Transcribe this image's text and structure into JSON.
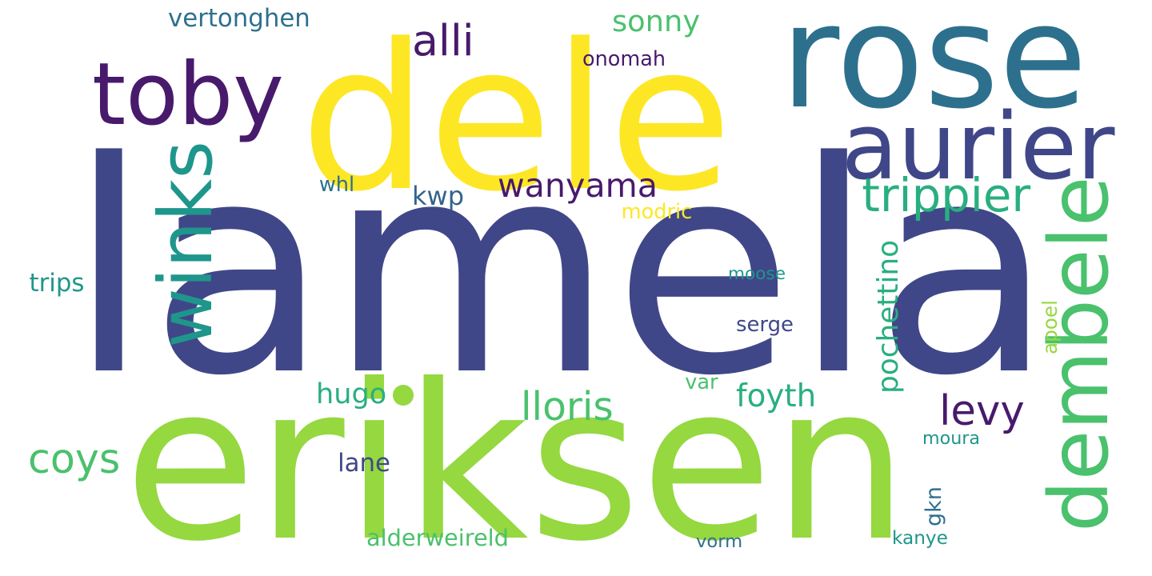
{
  "palette": {
    "background": "#ffffff",
    "indigo": "#404788",
    "yellow": "#fde725",
    "lime": "#95d840",
    "teal": "#2d708e",
    "purple": "#481a6c",
    "sea": "#29af7f",
    "green": "#4ac16d",
    "cyan": "#1f968b",
    "olive": "#b8de29",
    "ocean": "#33638d"
  },
  "words": [
    {
      "text": "lamela",
      "color": "#404788",
      "orientation": "horizontal"
    },
    {
      "text": "dele",
      "color": "#fde725",
      "orientation": "horizontal"
    },
    {
      "text": "eriksen",
      "color": "#95d840",
      "orientation": "horizontal"
    },
    {
      "text": "rose",
      "color": "#2d708e",
      "orientation": "horizontal"
    },
    {
      "text": "toby",
      "color": "#481a6c",
      "orientation": "horizontal"
    },
    {
      "text": "aurier",
      "color": "#404788",
      "orientation": "horizontal"
    },
    {
      "text": "winks",
      "color": "#1f968b",
      "orientation": "vertical"
    },
    {
      "text": "dembele",
      "color": "#4ac16d",
      "orientation": "vertical"
    },
    {
      "text": "wanyama",
      "color": "#481a6c",
      "orientation": "horizontal"
    },
    {
      "text": "trippier",
      "color": "#29af7f",
      "orientation": "horizontal"
    },
    {
      "text": "alli",
      "color": "#481a6c",
      "orientation": "horizontal"
    },
    {
      "text": "levy",
      "color": "#481a6c",
      "orientation": "horizontal"
    },
    {
      "text": "coys",
      "color": "#4ac16d",
      "orientation": "horizontal"
    },
    {
      "text": "sonny",
      "color": "#4ac16d",
      "orientation": "horizontal"
    },
    {
      "text": "lloris",
      "color": "#4ac16d",
      "orientation": "horizontal"
    },
    {
      "text": "foyth",
      "color": "#29af7f",
      "orientation": "horizontal"
    },
    {
      "text": "hugo",
      "color": "#29af7f",
      "orientation": "horizontal"
    },
    {
      "text": "kwp",
      "color": "#33638d",
      "orientation": "horizontal"
    },
    {
      "text": "pochettino",
      "color": "#29af7f",
      "orientation": "vertical"
    },
    {
      "text": "vertonghen",
      "color": "#2d708e",
      "orientation": "horizontal"
    },
    {
      "text": "onomah",
      "color": "#481a6c",
      "orientation": "horizontal"
    },
    {
      "text": "trips",
      "color": "#1f968b",
      "orientation": "horizontal"
    },
    {
      "text": "moose",
      "color": "#1f968b",
      "orientation": "horizontal"
    },
    {
      "text": "serge",
      "color": "#404788",
      "orientation": "horizontal"
    },
    {
      "text": "lane",
      "color": "#404788",
      "orientation": "horizontal"
    },
    {
      "text": "moura",
      "color": "#1f968b",
      "orientation": "horizontal"
    },
    {
      "text": "alderweireld",
      "color": "#4ac16d",
      "orientation": "horizontal"
    },
    {
      "text": "vorm",
      "color": "#2d708e",
      "orientation": "horizontal"
    },
    {
      "text": "kanye",
      "color": "#1f968b",
      "orientation": "horizontal"
    },
    {
      "text": "gkn",
      "color": "#2d708e",
      "orientation": "vertical"
    },
    {
      "text": "apoel",
      "color": "#95d840",
      "orientation": "vertical"
    },
    {
      "text": "var",
      "color": "#4ac16d",
      "orientation": "horizontal"
    },
    {
      "text": "modric",
      "color": "#fde725",
      "orientation": "horizontal"
    },
    {
      "text": "whl",
      "color": "#2d708e",
      "orientation": "horizontal"
    }
  ]
}
